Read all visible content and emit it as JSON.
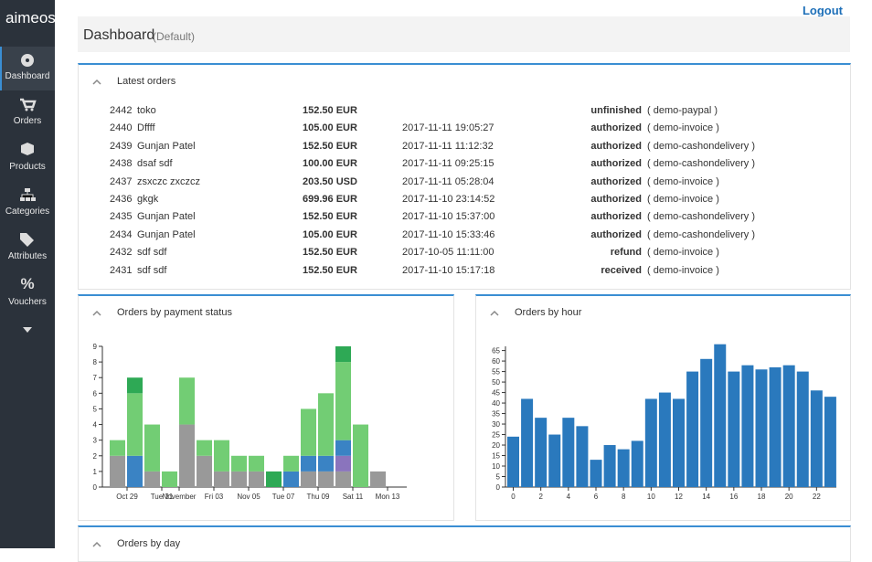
{
  "sidebar": {
    "logo": "aimeos",
    "nav": [
      "Dashboard",
      "Orders",
      "Products",
      "Categories",
      "Attributes",
      "Vouchers"
    ]
  },
  "header": {
    "logout": "Logout",
    "title": "Dashboard",
    "subtitle": "(Default)"
  },
  "latest_orders": {
    "title": "Latest orders",
    "rows": [
      {
        "id": "2442",
        "name": "toko",
        "price": "152.50 EUR",
        "status": "unfinished",
        "payment": "( demo-paypal )"
      },
      {
        "id": "2440",
        "name": "Dffff",
        "price": "105.00 EUR",
        "date": "2017-11-11 19:05:27",
        "status": "authorized",
        "payment": "( demo-invoice )"
      },
      {
        "id": "2439",
        "name": "Gunjan Patel",
        "price": "152.50 EUR",
        "date": "2017-11-11 11:12:32",
        "status": "authorized",
        "payment": "( demo-cashondelivery )"
      },
      {
        "id": "2438",
        "name": "dsaf sdf",
        "price": "100.00 EUR",
        "date": "2017-11-11 09:25:15",
        "status": "authorized",
        "payment": "( demo-cashondelivery )"
      },
      {
        "id": "2437",
        "name": "zsxczc zxczcz",
        "price": "203.50 USD",
        "date": "2017-11-11 05:28:04",
        "status": "authorized",
        "payment": "( demo-invoice )"
      },
      {
        "id": "2436",
        "name": "gkgk",
        "price": "699.96 EUR",
        "date": "2017-11-10 23:14:52",
        "status": "authorized",
        "payment": "( demo-invoice )"
      },
      {
        "id": "2435",
        "name": "Gunjan Patel",
        "price": "152.50 EUR",
        "date": "2017-11-10 15:37:00",
        "status": "authorized",
        "payment": "( demo-cashondelivery )"
      },
      {
        "id": "2434",
        "name": "Gunjan Patel",
        "price": "105.00 EUR",
        "date": "2017-11-10 15:33:46",
        "status": "authorized",
        "payment": "( demo-cashondelivery )"
      },
      {
        "id": "2432",
        "name": "sdf sdf",
        "price": "152.50 EUR",
        "date": "2017-10-05 11:11:00",
        "status": "refund",
        "payment": "( demo-invoice )"
      },
      {
        "id": "2431",
        "name": "sdf sdf",
        "price": "152.50 EUR",
        "date": "2017-11-10 15:17:18",
        "status": "received",
        "payment": "( demo-invoice )"
      }
    ]
  },
  "chart_data": [
    {
      "type": "bar",
      "stacked": true,
      "title": "Orders by payment status",
      "categories": [
        null,
        "Oct 29",
        null,
        "Tue 31",
        "November",
        null,
        "Fri 03",
        null,
        "Nov 05",
        null,
        "Tue 07",
        null,
        "Thu 09",
        null,
        "Sat 11",
        null,
        "Mon 13"
      ],
      "series": [
        {
          "color": "#999999",
          "values": [
            2,
            0,
            1,
            0,
            4,
            2,
            1,
            1,
            1,
            0,
            0,
            1,
            1,
            1,
            0,
            1,
            null
          ]
        },
        {
          "color": "#8a74bd",
          "values": [
            0,
            0,
            0,
            0,
            0,
            0,
            0,
            0,
            0,
            0,
            0,
            0,
            0,
            1,
            0,
            0,
            null
          ]
        },
        {
          "color": "#3a83c4",
          "values": [
            0,
            2,
            0,
            0,
            0,
            0,
            0,
            0,
            0,
            0,
            1,
            1,
            1,
            1,
            0,
            0,
            null
          ]
        },
        {
          "color": "#72cd74",
          "values": [
            1,
            4,
            3,
            1,
            3,
            1,
            2,
            1,
            1,
            0,
            1,
            3,
            4,
            5,
            4,
            0,
            null
          ]
        },
        {
          "color": "#2ea955",
          "values": [
            0,
            1,
            0,
            0,
            0,
            0,
            0,
            0,
            0,
            1,
            0,
            0,
            0,
            1,
            0,
            0,
            null
          ]
        }
      ],
      "ylim": [
        0,
        9
      ],
      "yticks": [
        0,
        1,
        2,
        3,
        4,
        5,
        6,
        7,
        8,
        9
      ]
    },
    {
      "type": "bar",
      "title": "Orders by hour",
      "color": "#2a79bd",
      "x": [
        0,
        1,
        2,
        3,
        4,
        5,
        6,
        7,
        8,
        9,
        10,
        11,
        12,
        13,
        14,
        15,
        16,
        17,
        18,
        19,
        20,
        21,
        22,
        23
      ],
      "values": [
        24,
        42,
        33,
        25,
        33,
        29,
        13,
        20,
        18,
        22,
        42,
        45,
        42,
        55,
        61,
        68,
        55,
        58,
        56,
        57,
        58,
        55,
        46,
        43
      ],
      "xlim": [
        0,
        24
      ],
      "xticks": [
        0,
        2,
        4,
        6,
        8,
        10,
        12,
        14,
        16,
        18,
        20,
        22
      ],
      "ylim": [
        0,
        67
      ],
      "yticks": [
        0,
        5,
        10,
        15,
        20,
        25,
        30,
        35,
        40,
        45,
        50,
        55,
        60,
        65
      ]
    }
  ],
  "orders_by_day": {
    "title": "Orders by day"
  }
}
